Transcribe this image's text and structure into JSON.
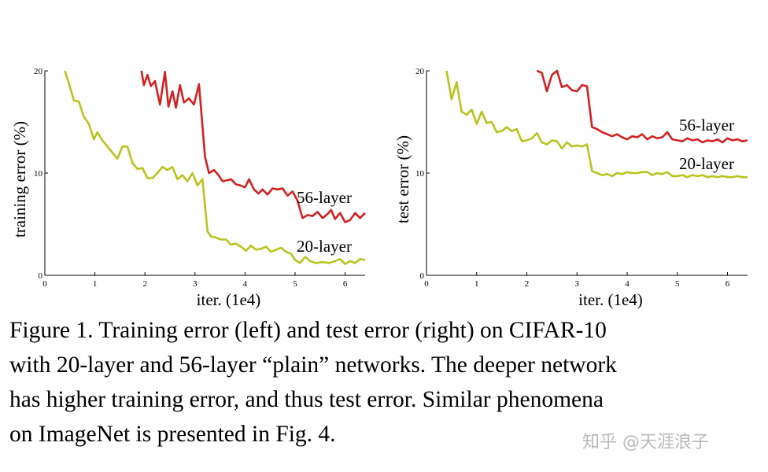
{
  "chart_data": [
    {
      "type": "line",
      "xlabel": "iter. (1e4)",
      "ylabel": "training error (%)",
      "xlim": [
        0,
        6.4
      ],
      "ylim": [
        0,
        20
      ],
      "x_ticks": [
        "0",
        "1",
        "2",
        "3",
        "4",
        "5",
        "6"
      ],
      "y_ticks": [
        "0",
        "10",
        "20"
      ],
      "grid": false,
      "series": [
        {
          "name": "56-layer",
          "color": "#d42020",
          "x": [
            1.93,
            1.98,
            2.05,
            2.12,
            2.2,
            2.3,
            2.4,
            2.47,
            2.55,
            2.62,
            2.7,
            2.78,
            2.88,
            2.98,
            3.08,
            3.2,
            3.28,
            3.38,
            3.47,
            3.55,
            3.65,
            3.72,
            3.82,
            3.9,
            4.0,
            4.08,
            4.18,
            4.27,
            4.35,
            4.45,
            4.55,
            4.65,
            4.75,
            4.85,
            4.95,
            5.05,
            5.15,
            5.25,
            5.35,
            5.45,
            5.55,
            5.65,
            5.72,
            5.8,
            5.9,
            6.0,
            6.1,
            6.2,
            6.3,
            6.4
          ],
          "y": [
            20.0,
            18.6,
            19.6,
            18.5,
            19.0,
            16.7,
            19.9,
            16.5,
            18.0,
            16.4,
            18.6,
            16.9,
            17.3,
            16.7,
            18.7,
            11.6,
            10.0,
            10.3,
            9.8,
            9.2,
            9.3,
            9.4,
            8.9,
            8.8,
            8.6,
            9.4,
            8.4,
            8.0,
            8.4,
            7.9,
            8.5,
            8.4,
            8.5,
            7.8,
            8.2,
            7.3,
            5.6,
            5.9,
            5.8,
            6.2,
            5.6,
            6.0,
            6.4,
            5.5,
            6.1,
            5.2,
            5.4,
            6.1,
            5.6,
            6.1
          ]
        },
        {
          "name": "20-layer",
          "color": "#b8c41e",
          "x": [
            0.4,
            0.48,
            0.58,
            0.68,
            0.78,
            0.88,
            0.98,
            1.05,
            1.15,
            1.25,
            1.35,
            1.45,
            1.55,
            1.65,
            1.75,
            1.85,
            1.95,
            2.05,
            2.15,
            2.25,
            2.35,
            2.45,
            2.55,
            2.65,
            2.75,
            2.85,
            2.95,
            3.05,
            3.15,
            3.25,
            3.32,
            3.42,
            3.52,
            3.62,
            3.72,
            3.82,
            3.92,
            4.02,
            4.12,
            4.22,
            4.32,
            4.42,
            4.52,
            4.62,
            4.72,
            4.82,
            4.92,
            5.0,
            5.1,
            5.2,
            5.3,
            5.42,
            5.55,
            5.68,
            5.8,
            5.9,
            6.0,
            6.1,
            6.2,
            6.3,
            6.4
          ],
          "y": [
            20.0,
            18.8,
            17.1,
            17.0,
            15.5,
            14.8,
            13.3,
            14.0,
            13.2,
            12.6,
            12.0,
            11.4,
            12.6,
            12.6,
            11.0,
            10.4,
            10.5,
            9.5,
            9.5,
            10.0,
            10.6,
            10.3,
            10.6,
            9.4,
            9.8,
            9.2,
            10.0,
            8.8,
            9.4,
            4.3,
            3.8,
            3.7,
            3.5,
            3.5,
            3.0,
            3.1,
            2.8,
            2.4,
            2.9,
            2.5,
            2.6,
            2.8,
            2.3,
            2.5,
            2.7,
            2.3,
            2.1,
            1.5,
            1.2,
            1.8,
            1.4,
            1.2,
            1.3,
            1.2,
            1.4,
            1.6,
            1.1,
            1.4,
            1.2,
            1.6,
            1.5
          ]
        }
      ]
    },
    {
      "type": "line",
      "xlabel": "iter. (1e4)",
      "ylabel": "test error (%)",
      "xlim": [
        0,
        6.4
      ],
      "ylim": [
        0,
        20
      ],
      "x_ticks": [
        "0",
        "1",
        "2",
        "3",
        "4",
        "5",
        "6"
      ],
      "y_ticks": [
        "0",
        "10",
        "20"
      ],
      "grid": false,
      "series": [
        {
          "name": "56-layer",
          "color": "#d42020",
          "x": [
            2.2,
            2.3,
            2.4,
            2.5,
            2.6,
            2.7,
            2.8,
            2.9,
            3.0,
            3.1,
            3.2,
            3.3,
            3.4,
            3.5,
            3.6,
            3.7,
            3.8,
            3.9,
            4.0,
            4.1,
            4.2,
            4.3,
            4.4,
            4.5,
            4.6,
            4.7,
            4.8,
            4.9,
            5.0,
            5.1,
            5.2,
            5.3,
            5.4,
            5.5,
            5.6,
            5.7,
            5.8,
            5.9,
            6.0,
            6.1,
            6.2,
            6.3,
            6.4
          ],
          "y": [
            20.0,
            19.8,
            18.0,
            19.6,
            20.0,
            18.4,
            18.6,
            18.1,
            18.0,
            18.6,
            18.5,
            14.5,
            14.3,
            14.0,
            13.8,
            13.6,
            13.8,
            13.5,
            13.3,
            13.6,
            13.5,
            13.8,
            13.3,
            13.6,
            13.4,
            13.5,
            14.0,
            13.3,
            13.2,
            13.1,
            13.4,
            13.2,
            13.3,
            13.0,
            13.2,
            13.1,
            13.3,
            13.0,
            13.4,
            13.2,
            13.3,
            13.1,
            13.2
          ]
        },
        {
          "name": "20-layer",
          "color": "#b8c41e",
          "x": [
            0.4,
            0.5,
            0.6,
            0.7,
            0.8,
            0.9,
            1.0,
            1.1,
            1.2,
            1.3,
            1.4,
            1.5,
            1.6,
            1.7,
            1.8,
            1.9,
            2.0,
            2.1,
            2.2,
            2.3,
            2.4,
            2.5,
            2.6,
            2.7,
            2.8,
            2.9,
            3.0,
            3.1,
            3.2,
            3.3,
            3.4,
            3.5,
            3.6,
            3.7,
            3.8,
            3.9,
            4.0,
            4.1,
            4.2,
            4.3,
            4.4,
            4.5,
            4.6,
            4.7,
            4.8,
            4.9,
            5.0,
            5.1,
            5.2,
            5.3,
            5.4,
            5.5,
            5.6,
            5.7,
            5.8,
            5.9,
            6.0,
            6.1,
            6.2,
            6.3,
            6.4
          ],
          "y": [
            20.0,
            17.2,
            18.9,
            16.0,
            15.7,
            16.2,
            14.8,
            16.0,
            14.9,
            15.0,
            14.0,
            14.1,
            14.5,
            14.1,
            14.3,
            13.1,
            13.2,
            13.4,
            13.9,
            13.0,
            12.8,
            13.2,
            13.1,
            12.4,
            13.0,
            12.6,
            12.7,
            12.6,
            12.8,
            10.2,
            10.0,
            9.8,
            9.9,
            9.7,
            10.0,
            9.9,
            10.1,
            10.0,
            10.0,
            10.1,
            10.1,
            9.8,
            10.0,
            9.9,
            10.1,
            9.7,
            9.7,
            9.8,
            9.6,
            9.8,
            9.7,
            9.8,
            9.6,
            9.7,
            9.6,
            9.7,
            9.6,
            9.6,
            9.7,
            9.6,
            9.6
          ]
        }
      ]
    }
  ],
  "caption": {
    "lines": [
      "Figure 1. Training error (left) and test error (right) on CIFAR-10",
      "with 20-layer and 56-layer “plain” networks. The deeper network",
      "has higher training error, and thus test error.  Similar phenomena",
      "on ImageNet is presented in Fig. 4."
    ]
  },
  "watermark": "知乎 @天涯浪子"
}
